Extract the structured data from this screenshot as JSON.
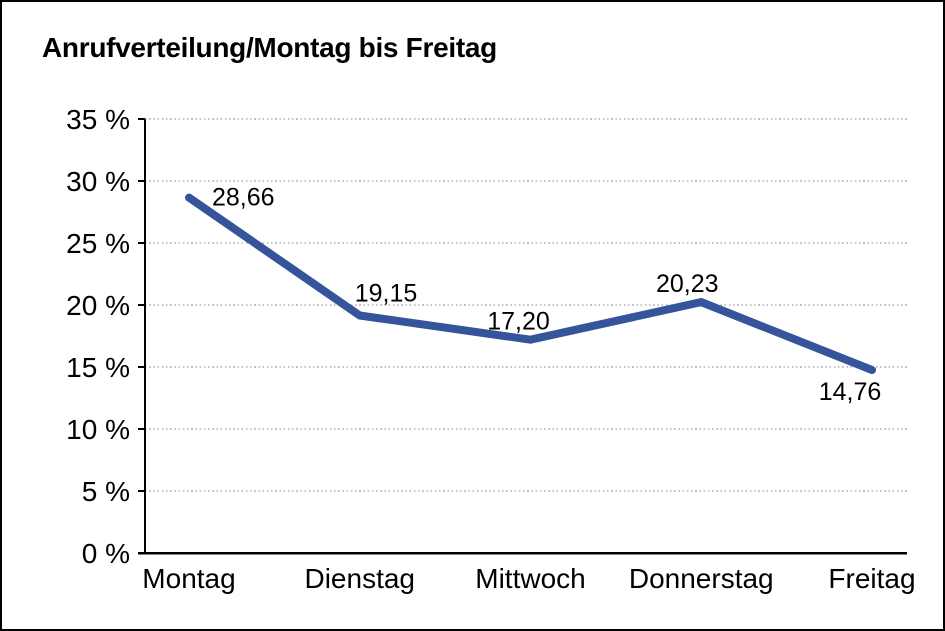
{
  "page": {
    "background": "#ffffff",
    "border_color": "#000000"
  },
  "chart_data": {
    "type": "line",
    "title": "Anrufverteilung/Montag bis Freitag",
    "categories": [
      "Montag",
      "Dienstag",
      "Mittwoch",
      "Donnerstag",
      "Freitag"
    ],
    "values": [
      28.66,
      19.15,
      17.2,
      20.23,
      14.76
    ],
    "data_labels": [
      "28,66",
      "19,15",
      "17,20",
      "20,23",
      "14,76"
    ],
    "xlabel": "",
    "ylabel": "",
    "ylim": [
      0,
      35
    ],
    "ytick_step": 5,
    "yticks": [
      0,
      5,
      10,
      15,
      20,
      25,
      30,
      35
    ],
    "ytick_labels": [
      "0 %",
      "5 %",
      "10 %",
      "15 %",
      "20 %",
      "25 %",
      "30 %",
      "35 %"
    ],
    "grid": "horizontal-dotted",
    "legend": "none",
    "line_color": "#35549b",
    "grid_color": "#8a8a8a",
    "axis_color": "#000000",
    "text_color": "#000000"
  }
}
